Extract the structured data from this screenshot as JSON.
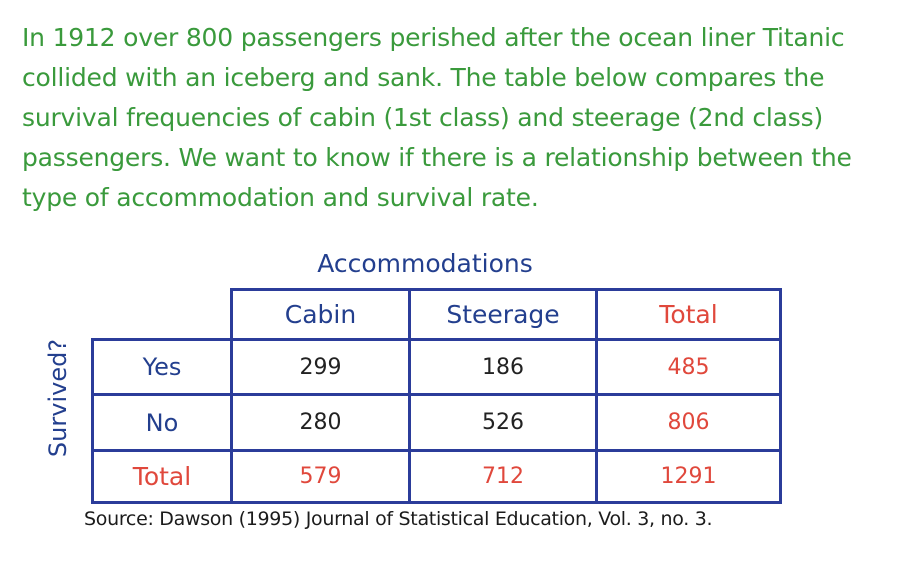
{
  "intro": {
    "lines": [
      "In 1912 over 800 passengers perished after the ocean liner Titanic",
      "collided with an iceberg and sank. The table below compares the",
      "survival frequencies of cabin (1st class) and steerage (2nd class)",
      "passengers. We want to know if there is a relationship between the",
      "type of accommodation and survival rate."
    ]
  },
  "table": {
    "column_group_label": "Accommodations",
    "row_group_label": "Survived?",
    "columns": [
      "Cabin",
      "Steerage",
      "Total"
    ],
    "rows": [
      {
        "label": "Yes",
        "cabin": "299",
        "steerage": "186",
        "total": "485"
      },
      {
        "label": "No",
        "cabin": "280",
        "steerage": "526",
        "total": "806"
      },
      {
        "label": "Total",
        "cabin": "579",
        "steerage": "712",
        "total": "1291"
      }
    ]
  },
  "source": "Source: Dawson (1995) Journal of Statistical Education, Vol. 3, no. 3.",
  "colors": {
    "intro_text": "#3a9a3c",
    "table_lines": "#2b3c9a",
    "header_text": "#233f8e",
    "total_text": "#e0483c",
    "body_text": "#222222"
  }
}
